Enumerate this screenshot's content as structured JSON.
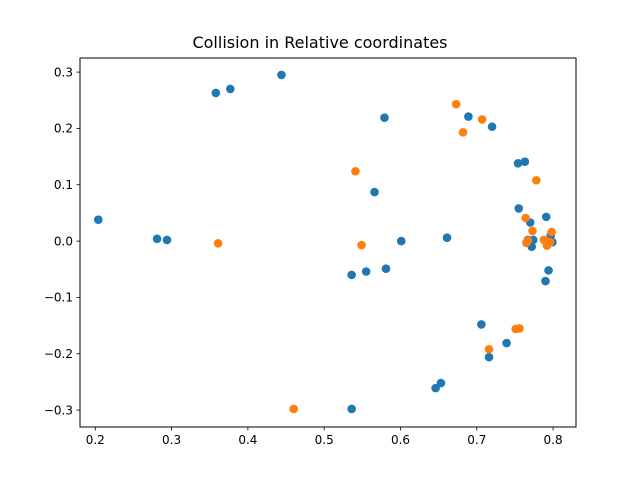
{
  "chart_data": {
    "type": "scatter",
    "title": "Collision in Relative coordinates",
    "xlabel": "",
    "ylabel": "",
    "xlim": [
      0.18,
      0.83
    ],
    "ylim": [
      -0.33,
      0.325
    ],
    "xticks": [
      0.2,
      0.3,
      0.4,
      0.5,
      0.6,
      0.7,
      0.8
    ],
    "xtick_labels": [
      "0.2",
      "0.3",
      "0.4",
      "0.5",
      "0.6",
      "0.7",
      "0.8"
    ],
    "yticks": [
      -0.3,
      -0.2,
      -0.1,
      0.0,
      0.1,
      0.2,
      0.3
    ],
    "ytick_labels": [
      "−0.3",
      "−0.2",
      "−0.1",
      "0.0",
      "0.1",
      "0.2",
      "0.3"
    ],
    "grid": false,
    "series": [
      {
        "color": "#1f77b4",
        "points": [
          [
            0.204,
            0.038
          ],
          [
            0.281,
            0.004
          ],
          [
            0.294,
            0.002
          ],
          [
            0.358,
            0.263
          ],
          [
            0.377,
            0.27
          ],
          [
            0.444,
            0.295
          ],
          [
            0.536,
            -0.06
          ],
          [
            0.536,
            -0.298
          ],
          [
            0.555,
            -0.054
          ],
          [
            0.566,
            0.087
          ],
          [
            0.579,
            0.219
          ],
          [
            0.581,
            -0.049
          ],
          [
            0.601,
            0.0
          ],
          [
            0.646,
            -0.261
          ],
          [
            0.653,
            -0.252
          ],
          [
            0.661,
            0.006
          ],
          [
            0.689,
            0.221
          ],
          [
            0.706,
            -0.148
          ],
          [
            0.716,
            -0.206
          ],
          [
            0.72,
            0.203
          ],
          [
            0.739,
            -0.181
          ],
          [
            0.754,
            0.138
          ],
          [
            0.755,
            0.058
          ],
          [
            0.763,
            0.141
          ],
          [
            0.767,
            0.002
          ],
          [
            0.77,
            0.033
          ],
          [
            0.772,
            -0.01
          ],
          [
            0.774,
            0.002
          ],
          [
            0.79,
            -0.071
          ],
          [
            0.791,
            0.043
          ],
          [
            0.794,
            -0.052
          ],
          [
            0.795,
            0.001
          ],
          [
            0.797,
            0.01
          ],
          [
            0.799,
            -0.002
          ]
        ]
      },
      {
        "color": "#ff7f0e",
        "points": [
          [
            0.361,
            -0.004
          ],
          [
            0.46,
            -0.298
          ],
          [
            0.541,
            0.124
          ],
          [
            0.549,
            -0.007
          ],
          [
            0.673,
            0.243
          ],
          [
            0.682,
            0.193
          ],
          [
            0.707,
            0.216
          ],
          [
            0.716,
            -0.192
          ],
          [
            0.751,
            -0.156
          ],
          [
            0.756,
            -0.155
          ],
          [
            0.764,
            0.041
          ],
          [
            0.765,
            -0.003
          ],
          [
            0.767,
            0.001
          ],
          [
            0.773,
            0.018
          ],
          [
            0.778,
            0.108
          ],
          [
            0.788,
            0.002
          ],
          [
            0.791,
            0.0
          ],
          [
            0.792,
            -0.008
          ],
          [
            0.796,
            -0.002
          ],
          [
            0.798,
            0.016
          ]
        ]
      }
    ]
  }
}
